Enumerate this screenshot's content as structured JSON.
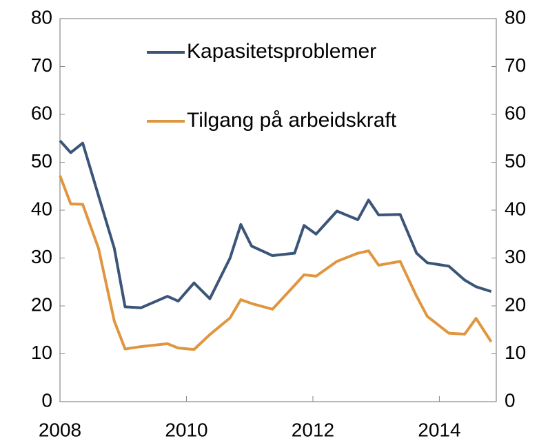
{
  "chart_data": {
    "type": "line",
    "x": [
      2008.0,
      2008.17,
      2008.36,
      2008.61,
      2008.86,
      2009.03,
      2009.28,
      2009.7,
      2009.87,
      2010.12,
      2010.37,
      2010.69,
      2010.86,
      2011.03,
      2011.36,
      2011.71,
      2011.86,
      2012.05,
      2012.38,
      2012.71,
      2012.88,
      2013.04,
      2013.38,
      2013.64,
      2013.81,
      2014.15,
      2014.4,
      2014.58,
      2014.82
    ],
    "series": [
      {
        "name": "Kapasitetsproblemer",
        "color": "#3b5578",
        "values": [
          54.5,
          52,
          54,
          43,
          32,
          19.8,
          19.6,
          22,
          21,
          24.8,
          21.5,
          30,
          37,
          32.5,
          30.5,
          31,
          36.8,
          35,
          39.8,
          38,
          42.1,
          39,
          39.1,
          31,
          29,
          28.3,
          25.4,
          24,
          23
        ]
      },
      {
        "name": "Tilgang på arbeidskraft",
        "color": "#e0963f",
        "values": [
          47.2,
          41.3,
          41.2,
          32,
          16.8,
          11,
          11.5,
          12.1,
          11.2,
          10.9,
          14,
          17.5,
          21.3,
          20.5,
          19.3,
          24.3,
          26.5,
          26.2,
          29.3,
          31,
          31.5,
          28.5,
          29.3,
          22,
          17.8,
          14.3,
          14.1,
          17.4,
          12.5
        ]
      }
    ],
    "xlim": [
      2008,
      2014.9
    ],
    "xticks": [
      2008,
      2010,
      2012,
      2014
    ],
    "ylim": [
      0,
      80
    ],
    "yticks": [
      0,
      10,
      20,
      30,
      40,
      50,
      60,
      70,
      80
    ],
    "y2lim": [
      0,
      80
    ],
    "y2ticks": [
      0,
      10,
      20,
      30,
      40,
      50,
      60,
      70,
      80
    ],
    "grid": false,
    "legend": "top"
  }
}
